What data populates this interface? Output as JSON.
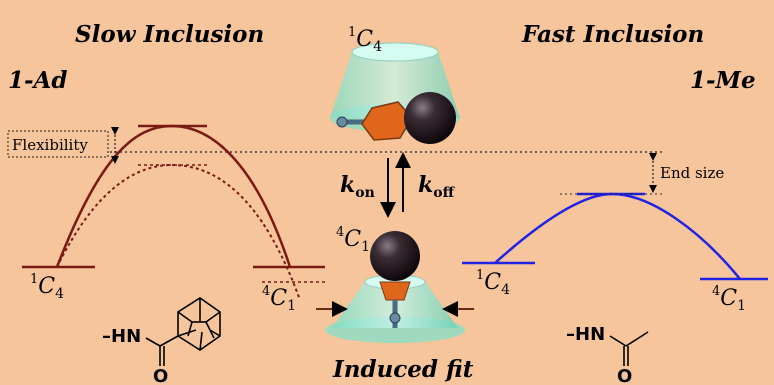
{
  "colors": {
    "background": "#f6c59c",
    "slow_curve": "#7a1a14",
    "fast_curve": "#2222e6",
    "cone": "#9fe8d2",
    "guest_ball": "#1e1418",
    "adamantyl": "#e0661c"
  },
  "headings": {
    "slow": "Slow Inclusion",
    "fast": "Fast Inclusion",
    "left_label": "1-Ad",
    "right_label": "1-Me"
  },
  "conformers": {
    "top": {
      "sup": "1",
      "base": "C",
      "sub": "4"
    },
    "middle": {
      "sup": "4",
      "base": "C",
      "sub": "1"
    },
    "left_start": {
      "sup": "1",
      "base": "C",
      "sub": "4"
    },
    "left_end": {
      "sup": "4",
      "base": "C",
      "sub": "1"
    },
    "right_start": {
      "sup": "1",
      "base": "C",
      "sub": "4"
    },
    "right_end": {
      "sup": "4",
      "base": "C",
      "sub": "1"
    }
  },
  "annotations": {
    "flexibility": "Flexibility",
    "end_size": "End size",
    "induced_fit": "Induced fit"
  },
  "rates": {
    "on": {
      "base": "k",
      "sub": "on"
    },
    "off": {
      "base": "k",
      "sub": "off"
    }
  },
  "structures": {
    "left_group": "–HN",
    "left_atom": "O",
    "right_group": "–HN",
    "right_atom": "O"
  }
}
